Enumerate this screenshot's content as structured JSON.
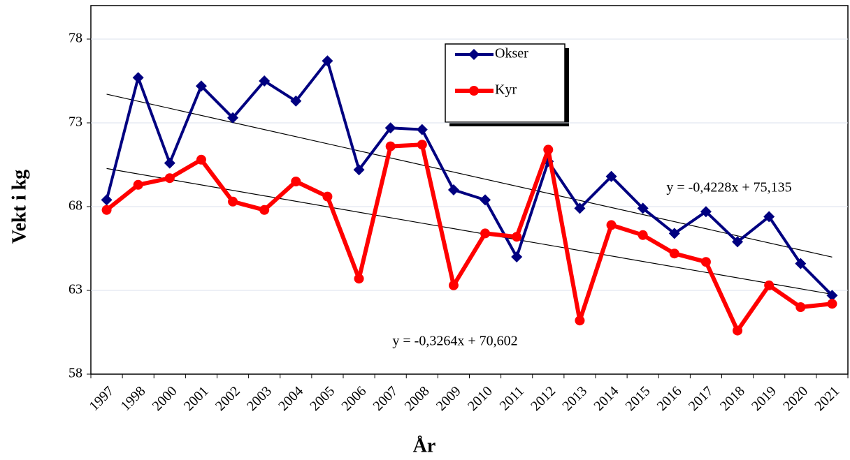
{
  "chart_data": {
    "type": "line",
    "x_label": "År",
    "y_label": "Vekt i kg",
    "categories": [
      "1997",
      "1998",
      "2000",
      "2001",
      "2002",
      "2003",
      "2004",
      "2005",
      "2006",
      "2007",
      "2008",
      "2009",
      "2010",
      "2011",
      "2012",
      "2013",
      "2014",
      "2015",
      "2016",
      "2017",
      "2018",
      "2019",
      "2020",
      "2021"
    ],
    "series": [
      {
        "name": "Okser",
        "color": "#000080",
        "marker": "diamond",
        "values": [
          68.4,
          75.7,
          70.6,
          75.2,
          73.3,
          75.5,
          74.3,
          76.7,
          70.2,
          72.7,
          72.6,
          69.0,
          68.4,
          65.0,
          70.7,
          67.9,
          69.8,
          67.9,
          66.4,
          67.7,
          65.9,
          67.4,
          64.6,
          62.7
        ]
      },
      {
        "name": "Kyr",
        "color": "#ff0000",
        "marker": "circle",
        "values": [
          67.8,
          69.3,
          69.7,
          70.8,
          68.3,
          67.8,
          69.5,
          68.6,
          63.7,
          71.6,
          71.7,
          63.3,
          66.4,
          66.2,
          71.4,
          61.2,
          66.9,
          66.3,
          65.2,
          64.7,
          60.6,
          63.3,
          62.0,
          62.2
        ]
      }
    ],
    "trendlines": [
      {
        "slope": -0.4228,
        "intercept": 75.135,
        "label": "y = -0,4228x + 75,135"
      },
      {
        "slope": -0.3264,
        "intercept": 70.602,
        "label": "y = -0,3264x + 70,602"
      }
    ],
    "ylim": [
      58,
      80
    ],
    "yticks": [
      58,
      63,
      68,
      73,
      78
    ],
    "grid": true
  }
}
